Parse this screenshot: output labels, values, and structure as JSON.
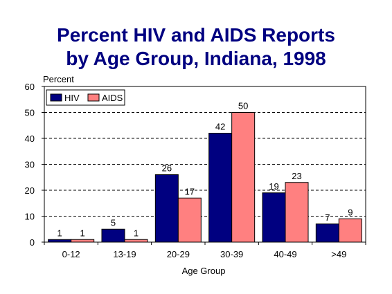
{
  "chart_data": {
    "type": "bar",
    "title_lines": [
      "Percent HIV and AIDS Reports",
      "by Age Group, Indiana, 1998"
    ],
    "ylabel": "Percent",
    "xlabel": "Age Group",
    "ylim": [
      0,
      60
    ],
    "yticks": [
      0,
      10,
      20,
      30,
      40,
      50,
      60
    ],
    "grid": true,
    "legend_position": "top-left",
    "categories": [
      "0-12",
      "13-19",
      "20-29",
      "30-39",
      "40-49",
      ">49"
    ],
    "series": [
      {
        "name": "HIV",
        "color": "#000080",
        "values": [
          1,
          5,
          26,
          42,
          19,
          7
        ]
      },
      {
        "name": "AIDS",
        "color": "#FF8080",
        "values": [
          1,
          1,
          17,
          50,
          23,
          9
        ]
      }
    ]
  }
}
